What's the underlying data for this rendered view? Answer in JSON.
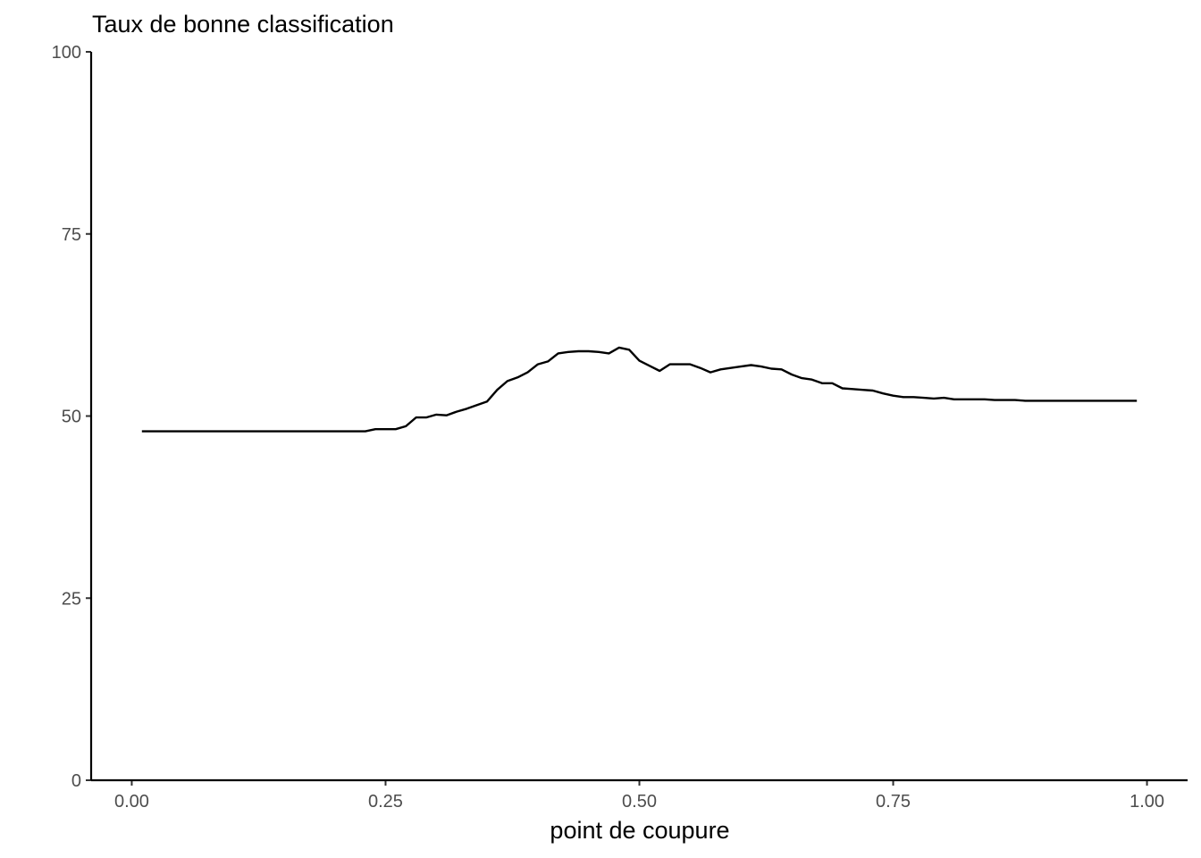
{
  "chart_data": {
    "type": "line",
    "title": "",
    "ylabel_top": "Taux de bonne classification",
    "xlabel": "point de coupure",
    "xlim": [
      -0.04,
      1.04
    ],
    "ylim": [
      0,
      100
    ],
    "x_ticks": [
      0,
      0.25,
      0.5,
      0.75,
      1.0
    ],
    "x_tick_labels": [
      "0.00",
      "0.25",
      "0.50",
      "0.75",
      "1.00"
    ],
    "y_ticks": [
      0,
      25,
      50,
      75,
      100
    ],
    "y_tick_labels": [
      "0",
      "25",
      "50",
      "75",
      "100"
    ],
    "grid": false,
    "line_color": "#000000",
    "series": [
      {
        "x": [
          0.01,
          0.05,
          0.1,
          0.15,
          0.2,
          0.23,
          0.24,
          0.25,
          0.26,
          0.27,
          0.28,
          0.29,
          0.3,
          0.31,
          0.32,
          0.33,
          0.34,
          0.35,
          0.36,
          0.37,
          0.38,
          0.39,
          0.4,
          0.41,
          0.42,
          0.43,
          0.44,
          0.45,
          0.46,
          0.47,
          0.48,
          0.49,
          0.5,
          0.51,
          0.52,
          0.53,
          0.54,
          0.55,
          0.56,
          0.57,
          0.58,
          0.59,
          0.6,
          0.61,
          0.62,
          0.63,
          0.64,
          0.65,
          0.66,
          0.67,
          0.68,
          0.69,
          0.7,
          0.71,
          0.72,
          0.73,
          0.74,
          0.75,
          0.76,
          0.77,
          0.78,
          0.79,
          0.8,
          0.81,
          0.82,
          0.83,
          0.84,
          0.85,
          0.86,
          0.87,
          0.88,
          0.9,
          0.95,
          0.99
        ],
        "y": [
          47.9,
          47.9,
          47.9,
          47.9,
          47.9,
          47.9,
          48.2,
          48.2,
          48.2,
          48.6,
          49.8,
          49.8,
          50.2,
          50.1,
          50.6,
          51.0,
          51.5,
          52.0,
          53.6,
          54.8,
          55.3,
          56.0,
          57.1,
          57.5,
          58.6,
          58.8,
          58.9,
          58.9,
          58.8,
          58.6,
          59.4,
          59.1,
          57.6,
          56.9,
          56.2,
          57.1,
          57.1,
          57.1,
          56.6,
          56.0,
          56.4,
          56.6,
          56.8,
          57.0,
          56.8,
          56.5,
          56.4,
          55.7,
          55.2,
          55.0,
          54.5,
          54.5,
          53.8,
          53.7,
          53.6,
          53.5,
          53.1,
          52.8,
          52.6,
          52.6,
          52.5,
          52.4,
          52.5,
          52.3,
          52.3,
          52.3,
          52.3,
          52.2,
          52.2,
          52.2,
          52.1,
          52.1,
          52.1,
          52.1
        ]
      }
    ]
  }
}
